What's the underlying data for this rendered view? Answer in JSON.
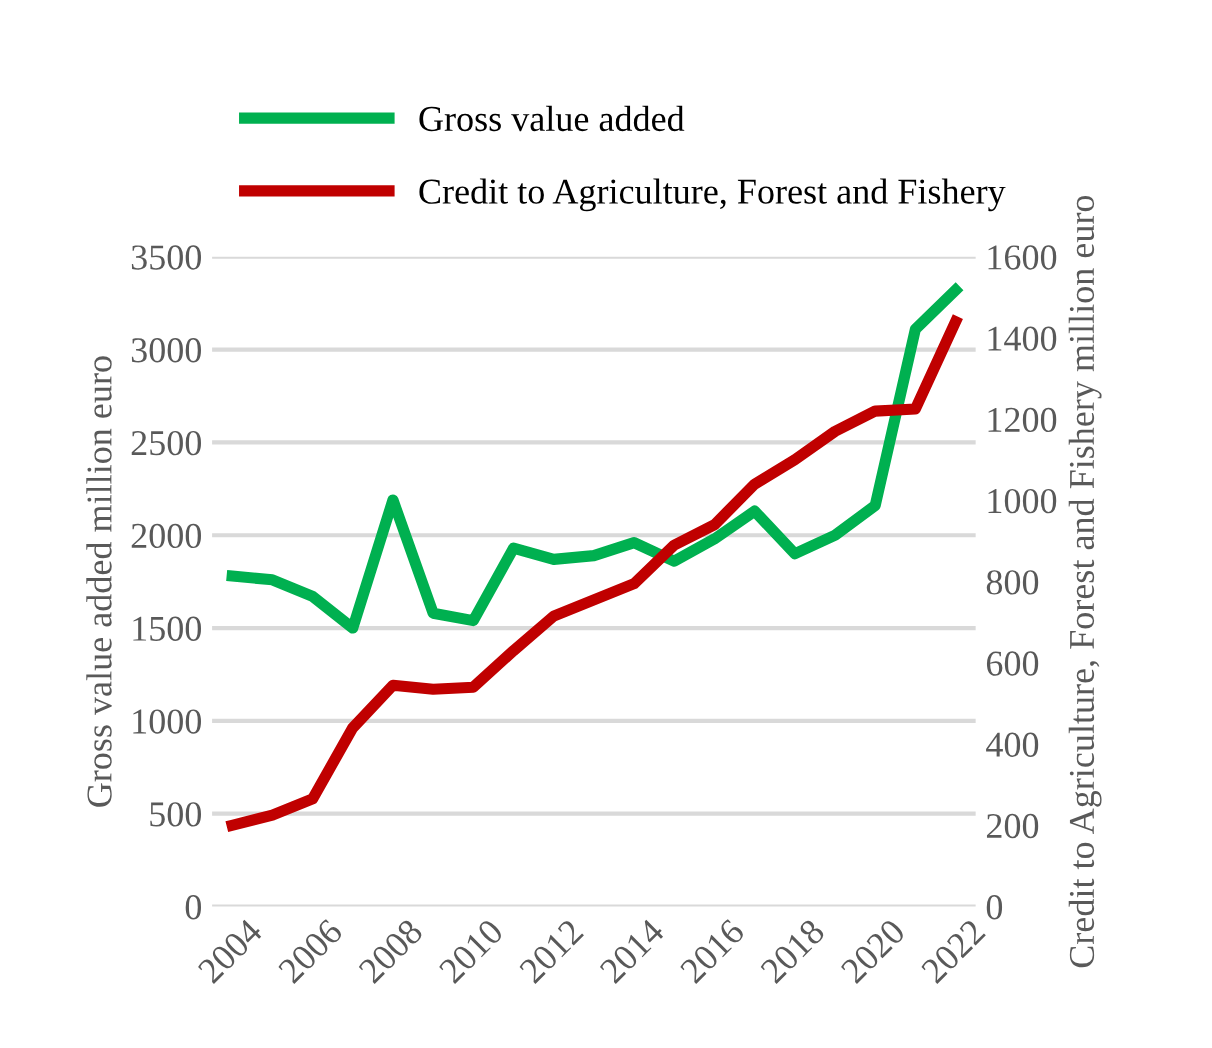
{
  "chart_data": {
    "type": "line",
    "ylabel": "Gross value added million euro",
    "y2label": "Credit to Agriculture, Forest and Fishery million euro",
    "x": [
      2004,
      2005,
      2006,
      2007,
      2008,
      2009,
      2010,
      2011,
      2012,
      2013,
      2014,
      2015,
      2016,
      2017,
      2018,
      2019,
      2020,
      2021,
      2022
    ],
    "series": [
      {
        "name": "Gross value added",
        "color": "#00b050",
        "values": [
          1780,
          1760,
          1670,
          1500,
          2190,
          1580,
          1540,
          1930,
          1870,
          1890,
          1960,
          1860,
          1980,
          2130,
          1900,
          2000,
          2160,
          3110,
          3320
        ]
      },
      {
        "name": "Credit to Agriculture, Forest and Fishery",
        "color": "#c00000",
        "axis": "y2",
        "values": [
          200,
          225,
          265,
          440,
          545,
          535,
          540,
          630,
          715,
          755,
          795,
          890,
          940,
          1040,
          1100,
          1170,
          1220,
          1225,
          1440
        ]
      }
    ],
    "xlim": [
      2003.5,
      2022.5
    ],
    "xticks": [
      2004,
      2006,
      2008,
      2010,
      2012,
      2014,
      2016,
      2018,
      2020,
      2022
    ],
    "ylim": [
      0,
      3500
    ],
    "yticks": [
      0,
      500,
      1000,
      1500,
      2000,
      2500,
      3000,
      3500
    ],
    "y2lim": [
      0,
      1600
    ],
    "y2ticks": [
      0,
      200,
      400,
      600,
      800,
      1000,
      1200,
      1400,
      1600
    ],
    "grid": "y",
    "legend": "top",
    "marker": "none",
    "line_style": "solid"
  }
}
